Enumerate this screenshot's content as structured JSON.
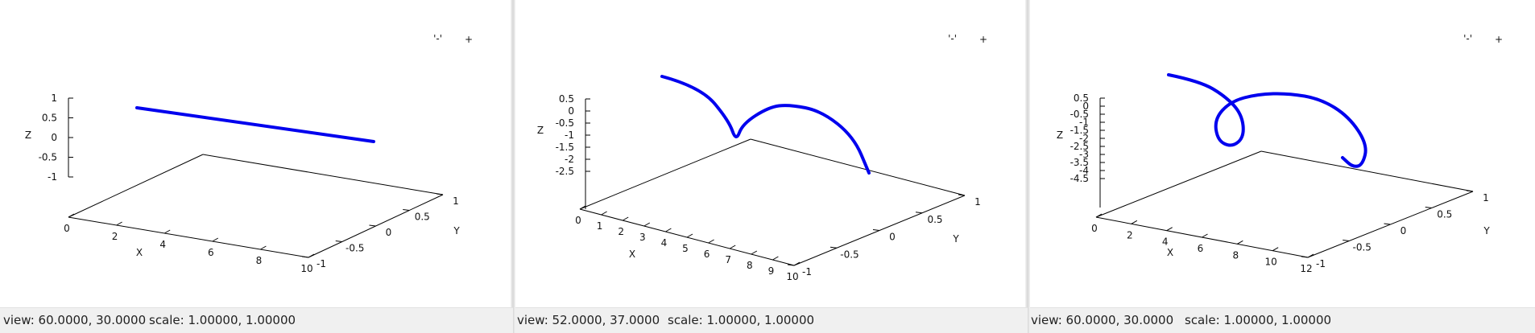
{
  "chart_data": [
    {
      "type": "line",
      "title": "",
      "xlabel": "X",
      "ylabel": "Y",
      "zlabel": "Z",
      "legend": {
        "label": "'-'",
        "marker": "+",
        "placement": "top-right"
      },
      "x_ticks": [
        "0",
        "2",
        "4",
        "6",
        "8",
        "10"
      ],
      "y_ticks": [
        "-1",
        "-0.5",
        "0",
        "0.5",
        "1"
      ],
      "z_ticks": [
        "1",
        "0.5",
        "0",
        "-0.5",
        "-1"
      ],
      "xlim": [
        0,
        10
      ],
      "ylim": [
        -1,
        1
      ],
      "zlim": [
        -1,
        1
      ],
      "series": [
        {
          "name": "'-'",
          "color": "#0000ee",
          "x": [
            0,
            10
          ],
          "y": [
            0,
            0
          ],
          "z": [
            0,
            0
          ]
        }
      ],
      "status": {
        "view": "view:  60.0000,  30.0000",
        "scale": "scale:  1.00000,  1.00000"
      }
    },
    {
      "type": "line",
      "title": "",
      "xlabel": "X",
      "ylabel": "Y",
      "zlabel": "Z",
      "legend": {
        "label": "'-'",
        "marker": "+",
        "placement": "top-right"
      },
      "x_ticks": [
        "0",
        "1",
        "2",
        "3",
        "4",
        "5",
        "6",
        "7",
        "8",
        "9",
        "10"
      ],
      "y_ticks": [
        "-1",
        "-0.5",
        "0",
        "0.5",
        "1"
      ],
      "z_ticks": [
        "0.5",
        "0",
        "-0.5",
        "-1",
        "-1.5",
        "-2",
        "-2.5"
      ],
      "xlim": [
        0,
        10
      ],
      "ylim": [
        -1,
        1
      ],
      "zlim": [
        -2.5,
        0.5
      ],
      "series": [
        {
          "name": "'-'",
          "color": "#0000ee",
          "x": [
            0,
            2,
            4,
            6,
            8,
            10
          ],
          "y": [
            0,
            0.8,
            0,
            -0.8,
            0,
            0
          ],
          "z": [
            0.5,
            -1.5,
            0.3,
            -1.5,
            0.3,
            -1.5
          ]
        }
      ],
      "status": {
        "view": "view:  52.0000,  37.0000",
        "scale": "scale:  1.00000,  1.00000"
      }
    },
    {
      "type": "line",
      "title": "",
      "xlabel": "X",
      "ylabel": "Y",
      "zlabel": "Z",
      "legend": {
        "label": "'-'",
        "marker": "+",
        "placement": "top-right"
      },
      "x_ticks": [
        "0",
        "2",
        "4",
        "6",
        "8",
        "10",
        "12"
      ],
      "y_ticks": [
        "-1",
        "-0.5",
        "0",
        "0.5",
        "1"
      ],
      "z_ticks": [
        "0.5",
        "0",
        "-0.5",
        "-1",
        "-1.5",
        "-2",
        "-2.5",
        "-3",
        "-3.5",
        "-4",
        "-4.5"
      ],
      "xlim": [
        0,
        12
      ],
      "ylim": [
        -1,
        1
      ],
      "zlim": [
        -4.5,
        0.5
      ],
      "series": [
        {
          "name": "'-'",
          "color": "#0000ee",
          "x": [
            0,
            2,
            4,
            6,
            8,
            10,
            12
          ],
          "y": [
            0,
            0.6,
            -0.3,
            0.2,
            0.8,
            0,
            -0.6
          ],
          "z": [
            0.5,
            -1,
            -2.5,
            0,
            0.2,
            -1.5,
            -2
          ]
        }
      ],
      "status": {
        "view": "view:  60.0000,  30.0000",
        "scale": "scale:  1.00000,  1.00000"
      }
    }
  ]
}
